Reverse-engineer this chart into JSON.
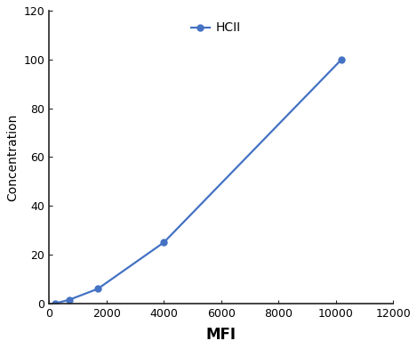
{
  "x": [
    200,
    700,
    1700,
    4000,
    10200
  ],
  "y": [
    0,
    1.5,
    6,
    25,
    100
  ],
  "line_color": "#4472C4",
  "marker": "o",
  "marker_size": 5,
  "line_width": 1.6,
  "legend_label": "HCII",
  "xlabel": "MFI",
  "ylabel": "Concentration",
  "xlabel_fontsize": 12,
  "ylabel_fontsize": 10,
  "xlim": [
    0,
    12000
  ],
  "ylim": [
    0,
    120
  ],
  "xticks": [
    0,
    2000,
    4000,
    6000,
    8000,
    10000,
    12000
  ],
  "yticks": [
    0,
    20,
    40,
    60,
    80,
    100,
    120
  ],
  "legend_fontsize": 10,
  "tick_fontsize": 9,
  "spine_color": "#222222",
  "background_color": "#ffffff"
}
